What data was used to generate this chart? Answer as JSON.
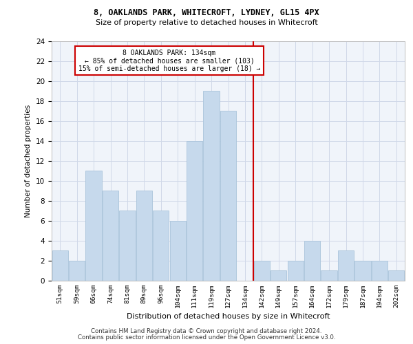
{
  "title1": "8, OAKLANDS PARK, WHITECROFT, LYDNEY, GL15 4PX",
  "title2": "Size of property relative to detached houses in Whitecroft",
  "xlabel": "Distribution of detached houses by size in Whitecroft",
  "ylabel": "Number of detached properties",
  "categories": [
    "51sqm",
    "59sqm",
    "66sqm",
    "74sqm",
    "81sqm",
    "89sqm",
    "96sqm",
    "104sqm",
    "111sqm",
    "119sqm",
    "127sqm",
    "134sqm",
    "142sqm",
    "149sqm",
    "157sqm",
    "164sqm",
    "172sqm",
    "179sqm",
    "187sqm",
    "194sqm",
    "202sqm"
  ],
  "values": [
    3,
    2,
    11,
    9,
    7,
    9,
    7,
    6,
    14,
    19,
    17,
    0,
    2,
    1,
    2,
    4,
    1,
    3,
    2,
    2,
    1
  ],
  "bar_color": "#c6d9ec",
  "bar_edge_color": "#aac4db",
  "vline_x": 11.5,
  "vline_color": "#cc0000",
  "annotation_box_text": "8 OAKLANDS PARK: 134sqm\n← 85% of detached houses are smaller (103)\n15% of semi-detached houses are larger (18) →",
  "annotation_box_color": "#cc0000",
  "ylim": [
    0,
    24
  ],
  "yticks": [
    0,
    2,
    4,
    6,
    8,
    10,
    12,
    14,
    16,
    18,
    20,
    22,
    24
  ],
  "footer1": "Contains HM Land Registry data © Crown copyright and database right 2024.",
  "footer2": "Contains public sector information licensed under the Open Government Licence v3.0.",
  "grid_color": "#d0d8e8",
  "background_color": "#f0f4fa"
}
